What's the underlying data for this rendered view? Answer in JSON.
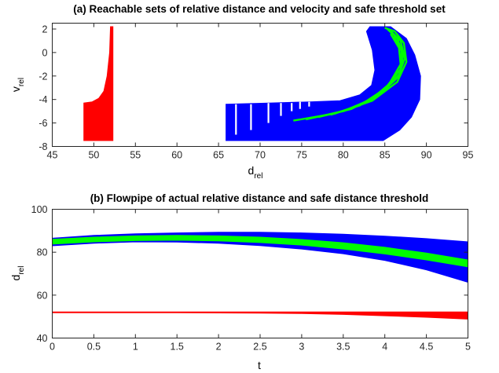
{
  "chart_data": [
    {
      "type": "area",
      "title": "(a) Reachable sets of relative distance and velocity and safe threshold set",
      "xlabel": {
        "main": "d",
        "sub": "rel"
      },
      "ylabel": {
        "main": "v",
        "sub": "rel"
      },
      "xlim": [
        45,
        95
      ],
      "ylim": [
        -8,
        2.5
      ],
      "xticks": [
        "45",
        "50",
        "55",
        "60",
        "65",
        "70",
        "75",
        "80",
        "85",
        "90",
        "95"
      ],
      "yticks": [
        "-8",
        "-6",
        "-4",
        "-2",
        "0",
        "2"
      ],
      "grid": false,
      "colors": {
        "blue": "#0000ff",
        "green": "#00ff00",
        "red": "#ff0000"
      },
      "series": [
        {
          "color": "red",
          "polygon": [
            [
              48.8,
              -7.5
            ],
            [
              52.3,
              -7.5
            ],
            [
              52.3,
              2.2
            ],
            [
              52.0,
              2.2
            ],
            [
              51.9,
              0
            ],
            [
              51.6,
              -2
            ],
            [
              51.2,
              -3.3
            ],
            [
              50.6,
              -3.9
            ],
            [
              49.8,
              -4.2
            ],
            [
              48.8,
              -4.3
            ]
          ]
        },
        {
          "color": "blue",
          "polygon": [
            [
              65.9,
              -7.5
            ],
            [
              84.8,
              -7.5
            ],
            [
              86.8,
              -6.6
            ],
            [
              88.2,
              -5.5
            ],
            [
              89.2,
              -4.0
            ],
            [
              89.3,
              -2.0
            ],
            [
              88.6,
              -0.2
            ],
            [
              87.6,
              1.2
            ],
            [
              85.7,
              2.2
            ],
            [
              83.2,
              2.2
            ],
            [
              82.8,
              1.8
            ],
            [
              83.5,
              0.2
            ],
            [
              83.8,
              -1.5
            ],
            [
              83.4,
              -2.8
            ],
            [
              82.0,
              -3.6
            ],
            [
              79.6,
              -4.1
            ],
            [
              76.0,
              -4.2
            ],
            [
              71.0,
              -4.3
            ],
            [
              65.9,
              -4.4
            ]
          ]
        },
        {
          "color": "green",
          "bands": [
            [
              [
                74.0,
                -5.8
              ],
              [
                79.0,
                -5.2
              ],
              [
                83.5,
                -4.1
              ],
              [
                86.5,
                -2.5
              ],
              [
                87.6,
                -0.8
              ],
              [
                87.3,
                0.8
              ],
              [
                86.2,
                1.8
              ],
              [
                85.0,
                2.1
              ]
            ],
            [
              [
                75.5,
                -5.7
              ],
              [
                80.0,
                -5.0
              ],
              [
                84.0,
                -3.8
              ],
              [
                86.6,
                -2.1
              ],
              [
                87.4,
                -0.5
              ],
              [
                86.9,
                1.0
              ],
              [
                85.6,
                1.9
              ]
            ],
            [
              [
                77.0,
                -5.5
              ],
              [
                81.0,
                -4.8
              ],
              [
                84.5,
                -3.5
              ],
              [
                86.8,
                -1.8
              ],
              [
                87.2,
                -0.2
              ],
              [
                86.5,
                1.2
              ],
              [
                85.3,
                2.0
              ]
            ],
            [
              [
                78.5,
                -5.3
              ],
              [
                82.0,
                -4.5
              ],
              [
                85.0,
                -3.1
              ],
              [
                86.9,
                -1.4
              ],
              [
                87.0,
                0.1
              ],
              [
                86.1,
                1.4
              ]
            ],
            [
              [
                80.0,
                -5.0
              ],
              [
                83.0,
                -4.2
              ],
              [
                85.5,
                -2.7
              ],
              [
                86.9,
                -1.0
              ],
              [
                86.7,
                0.4
              ],
              [
                85.7,
                1.6
              ]
            ]
          ]
        }
      ],
      "gaps": [
        {
          "x": 67.1,
          "y": [
            -7.0,
            -4.4
          ]
        },
        {
          "x": 68.9,
          "y": [
            -6.6,
            -4.4
          ]
        },
        {
          "x": 71.0,
          "y": [
            -6.0,
            -4.3
          ]
        },
        {
          "x": 72.5,
          "y": [
            -5.4,
            -4.3
          ]
        },
        {
          "x": 73.8,
          "y": [
            -5.0,
            -4.3
          ]
        },
        {
          "x": 74.8,
          "y": [
            -4.8,
            -4.2
          ]
        },
        {
          "x": 75.9,
          "y": [
            -4.6,
            -4.2
          ]
        }
      ]
    },
    {
      "type": "area",
      "title": "(b) Flowpipe of actual relative distance and safe distance threshold",
      "xlabel": {
        "main": "t",
        "sub": ""
      },
      "ylabel": {
        "main": "d",
        "sub": "rel"
      },
      "xlim": [
        0,
        5
      ],
      "ylim": [
        40,
        100
      ],
      "xticks": [
        "0",
        "0.5",
        "1",
        "1.5",
        "2",
        "2.5",
        "3",
        "3.5",
        "4",
        "4.5",
        "5"
      ],
      "yticks": [
        "40",
        "60",
        "80",
        "100"
      ],
      "grid": false,
      "series": [
        {
          "color": "blue",
          "x": [
            0,
            0.5,
            1,
            1.5,
            2,
            2.5,
            3,
            3.5,
            4,
            4.5,
            5
          ],
          "upper": [
            86.5,
            87.8,
            88.6,
            89.0,
            89.3,
            89.3,
            89.0,
            88.4,
            87.5,
            86.3,
            84.8
          ],
          "lower": [
            83.0,
            84.2,
            84.8,
            84.7,
            84.2,
            83.1,
            81.5,
            79.3,
            76.2,
            71.8,
            66.0
          ]
        },
        {
          "color": "green",
          "x": [
            0,
            0.5,
            1,
            1.5,
            2,
            2.5,
            3,
            3.5,
            4,
            4.5,
            5
          ],
          "upper": [
            86.0,
            87.0,
            87.6,
            87.8,
            87.6,
            87.0,
            85.9,
            84.4,
            82.3,
            79.6,
            76.4
          ],
          "lower": [
            83.8,
            84.8,
            85.4,
            85.6,
            85.3,
            84.5,
            83.3,
            81.5,
            79.2,
            76.4,
            73.2
          ]
        },
        {
          "color": "red",
          "x": [
            0,
            0.5,
            1,
            1.5,
            2,
            2.5,
            3,
            3.5,
            4,
            4.5,
            5
          ],
          "upper": [
            52.2,
            52.2,
            52.2,
            52.2,
            52.2,
            52.2,
            52.2,
            52.2,
            52.2,
            52.2,
            52.2
          ],
          "lower": [
            51.8,
            51.8,
            51.8,
            51.8,
            51.7,
            51.6,
            51.4,
            51.0,
            50.4,
            49.7,
            48.8
          ]
        }
      ]
    }
  ]
}
